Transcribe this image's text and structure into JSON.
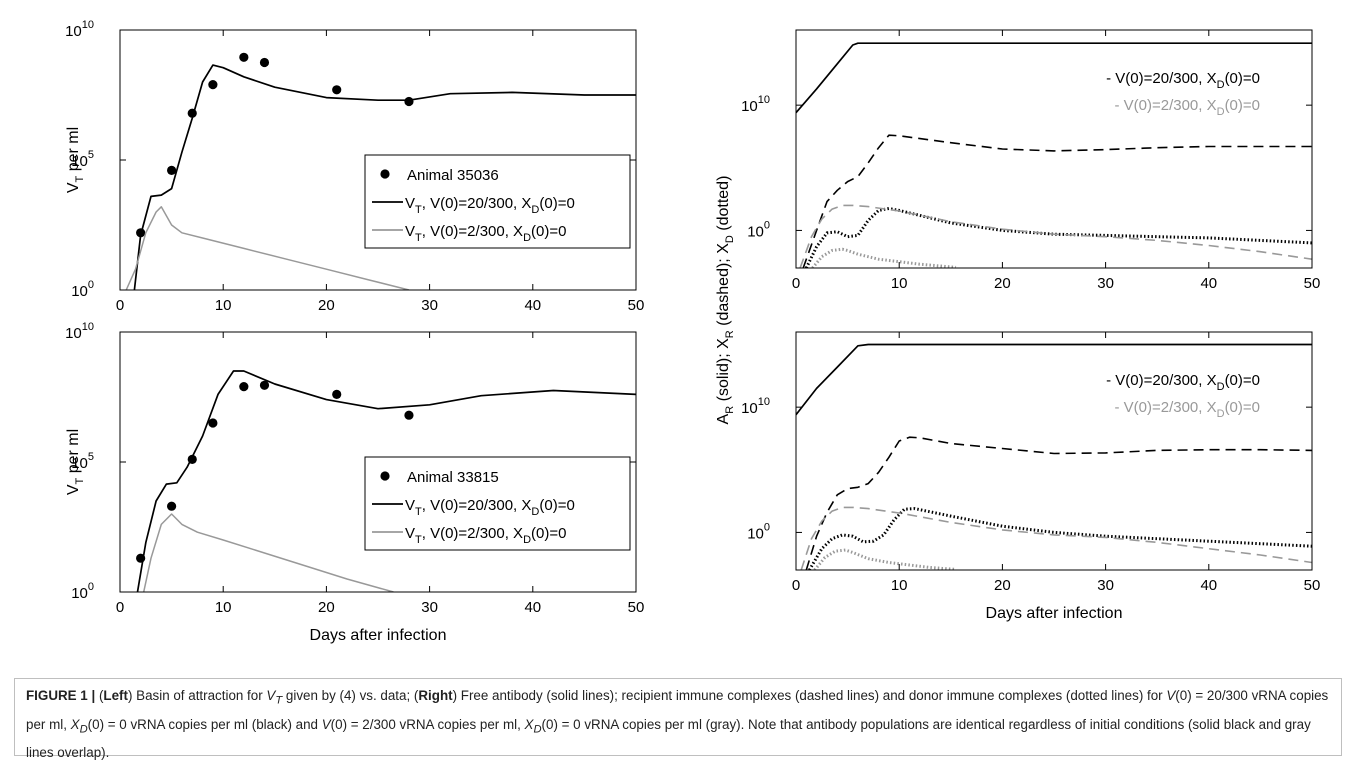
{
  "panels": [
    {
      "id": "left-top",
      "ylabel": "V",
      "ylabel_sub": "T",
      "ylabel_rest": " per ml",
      "xlabel": "",
      "ytick_labels": [
        {
          "base": "10",
          "exp": "0"
        },
        {
          "base": "10",
          "exp": "5"
        },
        {
          "base": "10",
          "exp": "10"
        }
      ],
      "xtick_labels": [
        "0",
        "10",
        "20",
        "30",
        "40",
        "50"
      ],
      "legend": [
        {
          "marker": "dot",
          "color": "#000000",
          "text": "Animal 35036"
        },
        {
          "marker": "line",
          "color": "#000000",
          "pre": "V",
          "sub": "T",
          "text": ", V(0)=20/300, X",
          "sub2": "D",
          "post": "(0)=0"
        },
        {
          "marker": "line",
          "color": "#999999",
          "pre": "V",
          "sub": "T",
          "text": ", V(0)=2/300, X",
          "sub2": "D",
          "post": "(0)=0"
        }
      ]
    },
    {
      "id": "left-bottom",
      "ylabel": "V",
      "ylabel_sub": "T",
      "ylabel_rest": " per ml",
      "xlabel": "Days after infection",
      "ytick_labels": [
        {
          "base": "10",
          "exp": "0"
        },
        {
          "base": "10",
          "exp": "5"
        },
        {
          "base": "10",
          "exp": "10"
        }
      ],
      "xtick_labels": [
        "0",
        "10",
        "20",
        "30",
        "40",
        "50"
      ],
      "legend": [
        {
          "marker": "dot",
          "color": "#000000",
          "text": "Animal 33815"
        },
        {
          "marker": "line",
          "color": "#000000",
          "pre": "V",
          "sub": "T",
          "text": ", V(0)=20/300, X",
          "sub2": "D",
          "post": "(0)=0"
        },
        {
          "marker": "line",
          "color": "#999999",
          "pre": "V",
          "sub": "T",
          "text": ", V(0)=2/300, X",
          "sub2": "D",
          "post": "(0)=0"
        }
      ]
    },
    {
      "id": "right-top",
      "xlabel": "",
      "ytick_labels": [
        {
          "base": "10",
          "exp": "0"
        },
        {
          "base": "10",
          "exp": "10"
        }
      ],
      "xtick_labels": [
        "0",
        "10",
        "20",
        "30",
        "40",
        "50"
      ],
      "legend": [
        {
          "color": "#000000",
          "text": "- V(0)=20/300, X",
          "sub2": "D",
          "post": "(0)=0"
        },
        {
          "color": "#999999",
          "text": "- V(0)=2/300, X",
          "sub2": "D",
          "post": "(0)=0"
        }
      ]
    },
    {
      "id": "right-bottom",
      "xlabel": "Days after infection",
      "ytick_labels": [
        {
          "base": "10",
          "exp": "0"
        },
        {
          "base": "10",
          "exp": "10"
        }
      ],
      "xtick_labels": [
        "0",
        "10",
        "20",
        "30",
        "40",
        "50"
      ],
      "legend": [
        {
          "color": "#000000",
          "text": "- V(0)=20/300, X",
          "sub2": "D",
          "post": "(0)=0"
        },
        {
          "color": "#999999",
          "text": "- V(0)=2/300, X",
          "sub2": "D",
          "post": "(0)=0"
        }
      ]
    }
  ],
  "right_ylabel": {
    "a": "A",
    "a_sub": "R",
    "b": " (solid); X",
    "b_sub": "R",
    "c": " (dashed); X",
    "c_sub": "D",
    "d": " (dotted)"
  },
  "chart_data": [
    {
      "type": "line",
      "title": "",
      "xlabel": "",
      "ylabel": "V_T per ml",
      "xlim": [
        0,
        50
      ],
      "ylim_log10": [
        0,
        10
      ],
      "yscale": "log",
      "series": [
        {
          "name": "Animal 35036",
          "kind": "scatter",
          "color": "#000000",
          "x": [
            2,
            5,
            7,
            9,
            12,
            14,
            21,
            28
          ],
          "y_log10": [
            2.2,
            4.6,
            6.8,
            7.9,
            8.95,
            8.75,
            7.7,
            7.25
          ]
        },
        {
          "name": "V_T, V(0)=20/300, X_D(0)=0",
          "kind": "line",
          "color": "#000000",
          "x": [
            1.4,
            2,
            3,
            4,
            5,
            6,
            7,
            8,
            9,
            10,
            12,
            15,
            20,
            25,
            28,
            32,
            38,
            45,
            50
          ],
          "y_log10": [
            0,
            2.1,
            3.6,
            3.65,
            3.9,
            5.3,
            6.6,
            8.0,
            8.65,
            8.55,
            8.2,
            7.8,
            7.4,
            7.3,
            7.3,
            7.55,
            7.6,
            7.5,
            7.5
          ]
        },
        {
          "name": "V_T, V(0)=2/300, X_D(0)=0",
          "kind": "line",
          "color": "#999999",
          "x": [
            0.6,
            1.5,
            2.5,
            3.5,
            4,
            5,
            6,
            8,
            12,
            16,
            20,
            24,
            28
          ],
          "y_log10": [
            0,
            0.8,
            2.2,
            3.0,
            3.2,
            2.5,
            2.2,
            2.0,
            1.6,
            1.2,
            0.8,
            0.4,
            0
          ]
        }
      ]
    },
    {
      "type": "line",
      "title": "",
      "xlabel": "Days after infection",
      "ylabel": "V_T per ml",
      "xlim": [
        0,
        50
      ],
      "ylim_log10": [
        0,
        10
      ],
      "yscale": "log",
      "series": [
        {
          "name": "Animal 33815",
          "kind": "scatter",
          "color": "#000000",
          "x": [
            2,
            5,
            7,
            9,
            12,
            14,
            21,
            28
          ],
          "y_log10": [
            1.3,
            3.3,
            5.1,
            6.5,
            7.9,
            7.95,
            7.6,
            6.8
          ]
        },
        {
          "name": "V_T, V(0)=20/300, X_D(0)=0",
          "kind": "line",
          "color": "#000000",
          "x": [
            1.7,
            2.5,
            3.5,
            4.5,
            5.5,
            6.5,
            8,
            9.5,
            11,
            12,
            15,
            20,
            25,
            30,
            35,
            42,
            50
          ],
          "y_log10": [
            0,
            1.9,
            3.5,
            4.15,
            4.2,
            4.8,
            6.0,
            7.6,
            8.5,
            8.5,
            8.0,
            7.4,
            7.05,
            7.2,
            7.55,
            7.75,
            7.6
          ]
        },
        {
          "name": "V_T, V(0)=2/300, X_D(0)=0",
          "kind": "line",
          "color": "#999999",
          "x": [
            2.3,
            3,
            4,
            5,
            6,
            7.5,
            10,
            14,
            18,
            22,
            26.5
          ],
          "y_log10": [
            0,
            1.3,
            2.6,
            3.0,
            2.6,
            2.3,
            2.0,
            1.5,
            1.0,
            0.5,
            0
          ]
        }
      ]
    },
    {
      "type": "line",
      "title": "",
      "xlabel": "",
      "ylabel": "A_R (solid); X_R (dashed); X_D (dotted)",
      "xlim": [
        0,
        50
      ],
      "ylim_log10": [
        -3,
        16
      ],
      "yscale": "log",
      "series": [
        {
          "name": "A_R, V(0)=20/300",
          "kind": "solid",
          "color": "#000000",
          "x": [
            0,
            2,
            4,
            5.5,
            6,
            50
          ],
          "y_log10": [
            9.4,
            11.3,
            13.3,
            14.8,
            14.95,
            14.95
          ]
        },
        {
          "name": "X_R, V(0)=20/300",
          "kind": "dashed",
          "color": "#000000",
          "x": [
            0.7,
            2,
            3,
            4,
            5,
            6,
            7,
            8,
            9,
            10,
            15,
            20,
            25,
            30,
            35,
            40,
            45,
            50
          ],
          "y_log10": [
            -3,
            0,
            2.3,
            3.2,
            3.9,
            4.3,
            5.4,
            6.6,
            7.6,
            7.55,
            7.0,
            6.5,
            6.35,
            6.45,
            6.6,
            6.7,
            6.7,
            6.7
          ]
        },
        {
          "name": "X_D, V(0)=20/300",
          "kind": "dotted",
          "color": "#000000",
          "x": [
            1.0,
            2,
            3,
            4,
            5,
            6,
            7,
            8,
            9,
            10,
            15,
            20,
            25,
            30,
            35,
            40,
            45,
            50
          ],
          "y_log10": [
            -3,
            -1.3,
            -0.2,
            -0.1,
            -0.5,
            -0.4,
            0.8,
            1.6,
            1.75,
            1.6,
            0.6,
            0.0,
            -0.3,
            -0.4,
            -0.5,
            -0.6,
            -0.8,
            -1.0
          ]
        },
        {
          "name": "X_R, V(0)=2/300",
          "kind": "dashed",
          "color": "#999999",
          "x": [
            0.4,
            1.5,
            2.5,
            3.5,
            4.5,
            5.5,
            7,
            10,
            15,
            20,
            25,
            30,
            35,
            40,
            45,
            50
          ],
          "y_log10": [
            -3,
            -0.5,
            0.9,
            1.7,
            2.0,
            2.0,
            1.9,
            1.55,
            0.7,
            0.1,
            -0.3,
            -0.5,
            -0.8,
            -1.2,
            -1.7,
            -2.3
          ]
        },
        {
          "name": "X_D, V(0)=2/300",
          "kind": "dotted",
          "color": "#999999",
          "x": [
            1.6,
            2.5,
            3.5,
            4.5,
            5,
            6,
            8,
            10,
            12,
            15.5
          ],
          "y_log10": [
            -3,
            -2.1,
            -1.6,
            -1.5,
            -1.6,
            -1.9,
            -2.3,
            -2.5,
            -2.7,
            -2.95
          ]
        }
      ]
    },
    {
      "type": "line",
      "title": "",
      "xlabel": "Days after infection",
      "ylabel": "A_R (solid); X_R (dashed); X_D (dotted)",
      "xlim": [
        0,
        50
      ],
      "ylim_log10": [
        -3,
        16
      ],
      "yscale": "log",
      "series": [
        {
          "name": "A_R, V(0)=20/300",
          "kind": "solid",
          "color": "#000000",
          "x": [
            0,
            2,
            4,
            6,
            7,
            50
          ],
          "y_log10": [
            9.4,
            11.5,
            13.2,
            14.9,
            15.0,
            15.0
          ]
        },
        {
          "name": "X_R, V(0)=20/300",
          "kind": "dashed",
          "color": "#000000",
          "x": [
            1.0,
            2,
            3,
            4,
            5,
            6,
            7,
            8,
            9,
            10,
            11,
            12,
            15,
            20,
            25,
            30,
            35,
            40,
            45,
            50
          ],
          "y_log10": [
            -3,
            -0.3,
            1.6,
            3.0,
            3.5,
            3.6,
            3.9,
            4.8,
            6.0,
            7.3,
            7.6,
            7.55,
            7.1,
            6.7,
            6.3,
            6.35,
            6.55,
            6.6,
            6.6,
            6.55
          ]
        },
        {
          "name": "X_D, V(0)=20/300",
          "kind": "dotted",
          "color": "#000000",
          "x": [
            1.3,
            2.5,
            3.5,
            4.5,
            5.5,
            6.5,
            7.5,
            8.5,
            9.5,
            10.5,
            11.5,
            15,
            20,
            25,
            30,
            35,
            40,
            45,
            50
          ],
          "y_log10": [
            -3,
            -1.3,
            -0.5,
            -0.2,
            -0.3,
            -0.75,
            -0.7,
            -0.2,
            1.0,
            1.85,
            1.9,
            1.3,
            0.5,
            0.0,
            -0.3,
            -0.5,
            -0.7,
            -0.9,
            -1.1
          ]
        },
        {
          "name": "X_R, V(0)=2/300",
          "kind": "dashed",
          "color": "#999999",
          "x": [
            0.5,
            1.5,
            2.5,
            3.5,
            4.5,
            5.5,
            7,
            10,
            15,
            20,
            25,
            30,
            35,
            40,
            45,
            50
          ],
          "y_log10": [
            -3,
            -0.5,
            0.9,
            1.7,
            2.0,
            2.0,
            1.9,
            1.55,
            0.8,
            0.2,
            -0.2,
            -0.4,
            -0.8,
            -1.3,
            -1.8,
            -2.4
          ]
        },
        {
          "name": "X_D, V(0)=2/300",
          "kind": "dotted",
          "color": "#999999",
          "x": [
            1.8,
            2.8,
            3.8,
            4.8,
            5.5,
            7,
            9,
            11,
            13,
            15.5
          ],
          "y_log10": [
            -3,
            -2.0,
            -1.5,
            -1.4,
            -1.6,
            -2.1,
            -2.4,
            -2.6,
            -2.8,
            -2.95
          ]
        }
      ]
    }
  ],
  "caption": {
    "figure_label": "FIGURE 1 | ",
    "p1": "(",
    "left_bold": "Left",
    "p2": ") Basin of attraction for ",
    "vt_i": "V",
    "vt_sub": "T",
    "p3": " given by (4) vs. data; (",
    "right_bold": "Right",
    "p4": ") Free antibody (solid lines); recipient immune complexes (dashed lines) and donor immune complexes (dotted lines) for ",
    "v0a": "V",
    "p5": "(0) = 20/300 vRNA copies per ml, ",
    "xd_a": "X",
    "xd_a_sub": "D",
    "p6": "(0) = 0 vRNA copies per ml (black) and ",
    "v0b": "V",
    "p7": "(0) = 2/300 vRNA copies per ml, ",
    "xd_b": "X",
    "xd_b_sub": "D",
    "p8": "(0) = 0 vRNA copies per ml (gray). Note that antibody populations are identical regardless of initial conditions (solid black and gray lines overlap)."
  }
}
